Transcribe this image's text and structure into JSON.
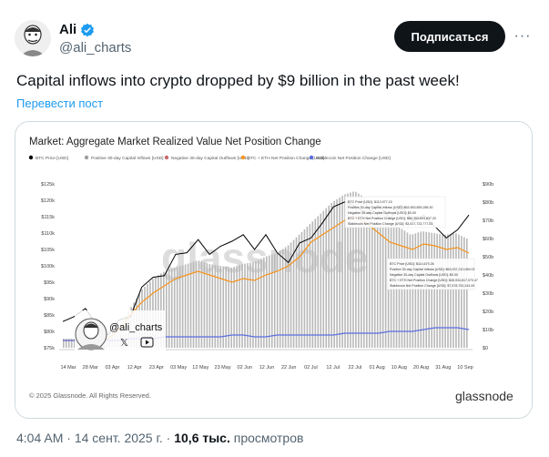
{
  "author": {
    "name": "Ali",
    "handle": "@ali_charts",
    "verified_color": "#1d9bf0"
  },
  "actions": {
    "subscribe_label": "Подписаться",
    "more_label": "···",
    "translate_label": "Перевести пост"
  },
  "tweet": {
    "text": "Capital inflows into crypto dropped by $9 billion in the past week!"
  },
  "meta": {
    "time": "4:04 AM",
    "date": "14 сент. 2025 г.",
    "separator": "·",
    "views_count": "10,6 тыс.",
    "views_label": "просмотров"
  },
  "chart_data": {
    "type": "line",
    "title": "Market: Aggregate Market Realized Value Net Position Change",
    "legend": [
      {
        "name": "BTC Price [USD]",
        "color": "#000000"
      },
      {
        "name": "Positive 30-day Capital Inflows [USD]",
        "color": "#9e9e9e"
      },
      {
        "name": "Negative 30-day Capital Outflows [USD]",
        "color": "#c96a6a"
      },
      {
        "name": "BTC + ETH Net Position Change [USD]",
        "color": "#f7931a"
      },
      {
        "name": "Stablecoin Net Position Change [USD]",
        "color": "#5b6ee1"
      }
    ],
    "legend_position": "top",
    "x_ticks": [
      "14 Mar",
      "28 Mar",
      "03 Apr",
      "12 Apr",
      "23 Apr",
      "03 May",
      "12 May",
      "23 May",
      "02 Jun",
      "12 Jun",
      "22 Jun",
      "02 Jul",
      "12 Jul",
      "22 Jul",
      "01 Aug",
      "10 Aug",
      "20 Aug",
      "31 Aug",
      "10 Sep"
    ],
    "y_left_ticks": [
      "$75k",
      "$80k",
      "$85k",
      "$90k",
      "$95k",
      "$100k",
      "$105k",
      "$110k",
      "$115k",
      "$120k",
      "$125k"
    ],
    "y_right_ticks": [
      "$0",
      "$10b",
      "$20b",
      "$30b",
      "$40b",
      "$50b",
      "$60b",
      "$70b",
      "$80b",
      "$90b"
    ],
    "ylim_left": [
      75000,
      125000
    ],
    "ylim_right": [
      0,
      90
    ],
    "series": [
      {
        "name": "BTC Price [USD]",
        "axis": "left",
        "values": [
          83000,
          84500,
          87000,
          82000,
          79000,
          83500,
          84500,
          93500,
          96500,
          97000,
          103500,
          104000,
          108000,
          103500,
          106000,
          107500,
          109500,
          105000,
          109500,
          104000,
          101000,
          107000,
          108500,
          113000,
          118000,
          119500,
          118000,
          116000,
          118500,
          114500,
          118500,
          113500,
          115500,
          112000,
          108500,
          111000,
          115500
        ]
      },
      {
        "name": "BTC + ETH Net Position Change [USD]",
        "axis": "right",
        "values": [
          4,
          4,
          4,
          4,
          5,
          10,
          18,
          25,
          30,
          34,
          38,
          40,
          42,
          40,
          38,
          36,
          38,
          37,
          40,
          42,
          45,
          50,
          58,
          62,
          66,
          70,
          72,
          68,
          63,
          58,
          56,
          54,
          57,
          56,
          54,
          55,
          52
        ]
      },
      {
        "name": "Stablecoin Net Position Change [USD]",
        "axis": "right",
        "values": [
          4,
          4,
          3,
          4,
          4,
          4,
          5,
          5,
          5,
          6,
          6,
          6,
          6,
          6,
          6,
          7,
          7,
          6,
          6,
          7,
          7,
          7,
          7,
          7,
          7,
          8,
          8,
          8,
          8,
          9,
          9,
          9,
          10,
          11,
          11,
          11,
          10
        ]
      },
      {
        "name": "Positive 30-day Capital Inflows [USD]",
        "axis": "right",
        "values": [
          5,
          5,
          5,
          6,
          7,
          12,
          22,
          32,
          38,
          42,
          44,
          46,
          48,
          46,
          45,
          44,
          46,
          47,
          50,
          52,
          56,
          62,
          68,
          74,
          80,
          84,
          86,
          82,
          76,
          70,
          66,
          62,
          64,
          63,
          62,
          63,
          60
        ]
      }
    ],
    "annotations": [
      "BTC Price [USD]: $113,977.15",
      "Positive 30-day Capital Inflows [USD]: $63,963,859,286.30",
      "Negative 30-day Capital Outflows [USD]: $0.00",
      "BTC + ETH Net Position Change [USD]: $60,353,693,837.20",
      "Stablecoin Net Position Change [USD]: $3,517,723,777.53",
      "BTC Price [USD]: $114,679.26",
      "Positive 30-day Capital Inflows [USD]: $63,037,210,069.02",
      "Negative 30-day Capital Outflows [USD]: $0.00",
      "BTC + ETH Net Position Change [USD]: $45,934,617,070.47",
      "Stablecoin Net Position Change [USD]: $7,578,702,244.09"
    ],
    "watermark": "glassnode",
    "overlay_handle": "@ali_charts",
    "copyright": "© 2025 Glassnode. All Rights Reserved.",
    "brand": "glassnode",
    "grid": false
  }
}
